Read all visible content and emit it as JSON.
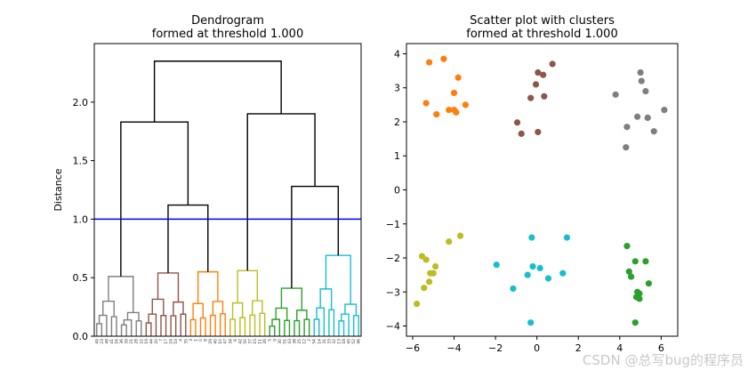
{
  "chart_data": [
    {
      "type": "dendrogram",
      "title": "Dendrogram\nformed at threshold 1.000",
      "ylabel": "Distance",
      "ylim": [
        0,
        2.5
      ],
      "yticks": [
        0.0,
        0.5,
        1.0,
        1.5,
        2.0
      ],
      "threshold": 1.0,
      "threshold_color": "#0000ff",
      "above_threshold_color": "#000000",
      "top_links": [
        {
          "height": 2.35,
          "joins": [
            "left_group",
            "right_group"
          ]
        },
        {
          "height": 1.83,
          "joins": [
            "gray",
            "brown_orange"
          ]
        },
        {
          "height": 1.12,
          "joins": [
            "brown",
            "orange"
          ]
        },
        {
          "height": 1.9,
          "joins": [
            "olive",
            "green_cyan"
          ]
        },
        {
          "height": 1.28,
          "joins": [
            "green",
            "cyan"
          ]
        }
      ],
      "clusters": [
        {
          "name": "gray",
          "color": "#7f7f7f",
          "root_height": 0.51,
          "leaves": [
            "49",
            "23",
            "48",
            "41",
            "16",
            "36",
            "39",
            "21",
            "28",
            "22"
          ]
        },
        {
          "name": "brown",
          "color": "#8c564b",
          "root_height": 0.54,
          "leaves": [
            "19",
            "44",
            "20",
            "7",
            "17",
            "24",
            "53",
            "4",
            "35"
          ]
        },
        {
          "name": "orange",
          "color": "#ff7f0e",
          "root_height": 0.55,
          "leaves": [
            "3",
            "1",
            "0",
            "8",
            "29",
            "40",
            "10",
            "47"
          ]
        },
        {
          "name": "olive",
          "color": "#bcbd22",
          "root_height": 0.56,
          "leaves": [
            "34",
            "6",
            "42",
            "50",
            "37",
            "15",
            "11",
            "26"
          ]
        },
        {
          "name": "green",
          "color": "#2ca02c",
          "root_height": 0.41,
          "leaves": [
            "5",
            "9",
            "30",
            "51",
            "43",
            "38",
            "25",
            "12",
            "2"
          ]
        },
        {
          "name": "cyan",
          "color": "#17becf",
          "root_height": 0.69,
          "leaves": [
            "54",
            "14",
            "31",
            "33",
            "32",
            "13",
            "18",
            "45",
            "52",
            "46"
          ]
        }
      ]
    },
    {
      "type": "scatter",
      "title": "Scatter plot with clusters\nformed at threshold 1.000",
      "xlim": [
        -6.3,
        6.8
      ],
      "ylim": [
        -4.3,
        4.3
      ],
      "xticks": [
        -6,
        -4,
        -2,
        0,
        2,
        4,
        6
      ],
      "yticks": [
        -4,
        -3,
        -2,
        -1,
        0,
        1,
        2,
        3,
        4
      ],
      "series": [
        {
          "color": "#ff7f0e",
          "points": [
            [
              -5.2,
              3.75
            ],
            [
              -4.5,
              3.85
            ],
            [
              -3.8,
              3.3
            ],
            [
              -4.0,
              2.85
            ],
            [
              -5.35,
              2.55
            ],
            [
              -3.45,
              2.5
            ],
            [
              -4.25,
              2.35
            ],
            [
              -4.0,
              2.35
            ],
            [
              -3.9,
              2.28
            ],
            [
              -4.85,
              2.22
            ]
          ]
        },
        {
          "color": "#8c564b",
          "points": [
            [
              0.75,
              3.7
            ],
            [
              0.05,
              3.45
            ],
            [
              0.3,
              3.38
            ],
            [
              -0.05,
              3.1
            ],
            [
              0.35,
              2.75
            ],
            [
              -0.3,
              2.7
            ],
            [
              -0.95,
              1.98
            ],
            [
              -0.75,
              1.65
            ],
            [
              0.05,
              1.7
            ]
          ]
        },
        {
          "color": "#7f7f7f",
          "points": [
            [
              5.0,
              3.45
            ],
            [
              5.05,
              3.2
            ],
            [
              5.25,
              2.9
            ],
            [
              3.8,
              2.8
            ],
            [
              6.15,
              2.35
            ],
            [
              4.85,
              2.15
            ],
            [
              5.35,
              2.12
            ],
            [
              4.35,
              1.85
            ],
            [
              5.65,
              1.72
            ],
            [
              4.3,
              1.25
            ]
          ]
        },
        {
          "color": "#bcbd22",
          "points": [
            [
              -3.7,
              -1.35
            ],
            [
              -4.25,
              -1.52
            ],
            [
              -5.55,
              -1.95
            ],
            [
              -5.35,
              -2.05
            ],
            [
              -4.9,
              -2.25
            ],
            [
              -5.15,
              -2.45
            ],
            [
              -5.0,
              -2.45
            ],
            [
              -5.2,
              -2.7
            ],
            [
              -5.45,
              -2.88
            ],
            [
              -5.8,
              -3.35
            ]
          ]
        },
        {
          "color": "#17becf",
          "points": [
            [
              -0.25,
              -1.4
            ],
            [
              1.45,
              -1.4
            ],
            [
              -1.95,
              -2.2
            ],
            [
              -0.2,
              -2.25
            ],
            [
              0.15,
              -2.3
            ],
            [
              -0.45,
              -2.5
            ],
            [
              1.25,
              -2.45
            ],
            [
              0.55,
              -2.6
            ],
            [
              -1.15,
              -2.9
            ],
            [
              -0.3,
              -3.9
            ]
          ]
        },
        {
          "color": "#2ca02c",
          "points": [
            [
              4.35,
              -1.65
            ],
            [
              4.75,
              -2.1
            ],
            [
              5.25,
              -2.1
            ],
            [
              4.45,
              -2.4
            ],
            [
              4.55,
              -2.55
            ],
            [
              5.4,
              -2.75
            ],
            [
              4.85,
              -3.0
            ],
            [
              4.95,
              -3.05
            ],
            [
              4.8,
              -3.15
            ],
            [
              4.95,
              -3.2
            ],
            [
              4.75,
              -3.9
            ]
          ]
        }
      ]
    }
  ],
  "watermark": "CSDN @总写bug的程序员"
}
